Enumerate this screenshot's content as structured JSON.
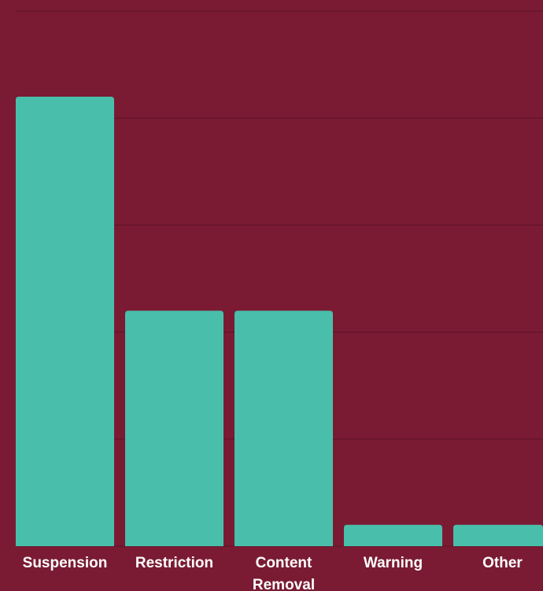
{
  "chart_data": {
    "type": "bar",
    "categories": [
      "Suspension",
      "Restriction",
      "Content Removal",
      "Warning",
      "Other"
    ],
    "category_label_lines": [
      [
        "Suspension"
      ],
      [
        "Restriction"
      ],
      [
        "Content",
        "Removal"
      ],
      [
        "Warning"
      ],
      [
        "Other"
      ]
    ],
    "values": [
      42,
      22,
      22,
      2,
      2
    ],
    "ylim": [
      0,
      50
    ],
    "grid": true,
    "colors": {
      "background": "#7a1b33",
      "bar": "#49bfab",
      "grid": "#5e1226",
      "label": "#ffffff"
    }
  }
}
